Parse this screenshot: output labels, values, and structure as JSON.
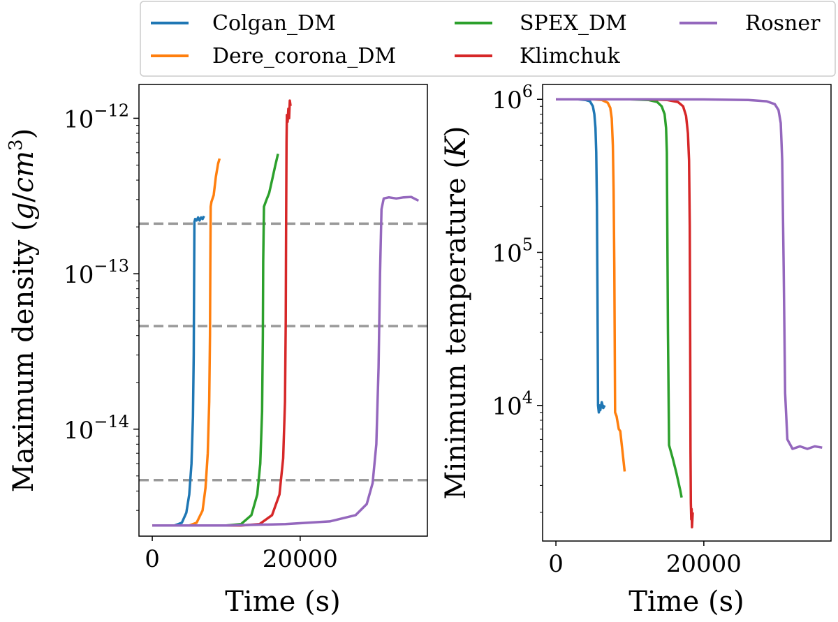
{
  "legend": {
    "location": "top",
    "entries": [
      {
        "name": "Colgan_DM",
        "color": "#1f77b4"
      },
      {
        "name": "SPEX_DM",
        "color": "#2ca02c"
      },
      {
        "name": "Rosner",
        "color": "#9467bd"
      },
      {
        "name": "Dere_corona_DM",
        "color": "#ff7f0e"
      },
      {
        "name": "Klimchuk",
        "color": "#d62728"
      }
    ]
  },
  "chart_data": [
    {
      "type": "line",
      "xlabel": "Time (s)",
      "ylabel": "Maximum density (g/cm³)",
      "yscale": "log",
      "xlim": [
        -1800,
        37200
      ],
      "ylim": [
        2.05e-15,
        1.65e-12
      ],
      "xticks": [
        {
          "value": 0,
          "label": "0"
        },
        {
          "value": 20000,
          "label": "20000"
        }
      ],
      "yticks": [
        {
          "value": 1e-12,
          "label": "10",
          "exp": "−12"
        },
        {
          "value": 1e-13,
          "label": "10",
          "exp": "−13"
        },
        {
          "value": 1e-14,
          "label": "10",
          "exp": "−14"
        }
      ],
      "hlines": [
        2.1e-13,
        4.6e-14,
        4.7e-15
      ],
      "series": [
        {
          "name": "Colgan_DM",
          "color": "#1f77b4",
          "x": [
            0,
            3000,
            4000,
            4600,
            5000,
            5300,
            5500,
            5600,
            5650,
            5700,
            5800,
            6000,
            6200,
            6400,
            6600,
            6800,
            7000
          ],
          "y": [
            2.4e-15,
            2.4e-15,
            2.5e-15,
            2.9e-15,
            3.8e-15,
            6e-15,
            1.2e-14,
            3e-14,
            8e-14,
            2.15e-13,
            2.25e-13,
            2.2e-13,
            2.3e-13,
            2.2e-13,
            2.3e-13,
            2.25e-13,
            2.35e-13
          ]
        },
        {
          "name": "Dere_corona_DM",
          "color": "#ff7f0e",
          "x": [
            0,
            5000,
            6000,
            6800,
            7200,
            7500,
            7700,
            7800,
            7850,
            7900,
            8000,
            8300,
            8600,
            8900,
            9100
          ],
          "y": [
            2.4e-15,
            2.4e-15,
            2.5e-15,
            3e-15,
            4.2e-15,
            7e-15,
            1.5e-14,
            4e-14,
            1.2e-13,
            2.7e-13,
            2.9e-13,
            3.2e-13,
            4.2e-13,
            5.1e-13,
            5.5e-13
          ]
        },
        {
          "name": "SPEX_DM",
          "color": "#2ca02c",
          "x": [
            0,
            10000,
            12000,
            13400,
            14200,
            14600,
            14850,
            14950,
            15000,
            15100,
            15400,
            15800,
            16200,
            16600,
            17000
          ],
          "y": [
            2.4e-15,
            2.4e-15,
            2.45e-15,
            2.8e-15,
            3.8e-15,
            6e-15,
            1.3e-14,
            4e-14,
            1.2e-13,
            2.7e-13,
            2.95e-13,
            3.3e-13,
            4e-13,
            4.9e-13,
            5.9e-13
          ]
        },
        {
          "name": "Klimchuk",
          "color": "#d62728",
          "x": [
            0,
            12000,
            14500,
            16200,
            17200,
            17700,
            17950,
            18050,
            18100,
            18150,
            18200,
            18300,
            18400,
            18500,
            18600,
            18700
          ],
          "y": [
            2.4e-15,
            2.4e-15,
            2.45e-15,
            2.8e-15,
            3.8e-15,
            6.5e-15,
            1.5e-14,
            5e-14,
            2e-13,
            7e-13,
            1.05e-12,
            9.5e-13,
            1.15e-12,
            1e-12,
            1.3e-12,
            1.2e-12
          ]
        },
        {
          "name": "Rosner",
          "color": "#9467bd",
          "x": [
            0,
            10000,
            18000,
            24000,
            27500,
            29000,
            29800,
            30300,
            30600,
            30800,
            31000,
            31300,
            32000,
            33000,
            34000,
            35000,
            36000
          ],
          "y": [
            2.4e-15,
            2.4e-15,
            2.45e-15,
            2.55e-15,
            2.8e-15,
            3.3e-15,
            4.5e-15,
            8e-15,
            2.5e-14,
            1e-13,
            2.6e-13,
            3.05e-13,
            3.1e-13,
            3.05e-13,
            3.1e-13,
            3.12e-13,
            2.95e-13
          ]
        }
      ]
    },
    {
      "type": "line",
      "xlabel": "Time (s)",
      "ylabel": "Minimum temperature (K)",
      "yscale": "log",
      "xlim": [
        -1800,
        37200
      ],
      "ylim": [
        1300.0,
        1250000.0
      ],
      "xticks": [
        {
          "value": 0,
          "label": "0"
        },
        {
          "value": 20000,
          "label": "20000"
        }
      ],
      "yticks": [
        {
          "value": 1000000,
          "label": "10",
          "exp": "6"
        },
        {
          "value": 100000,
          "label": "10",
          "exp": "5"
        },
        {
          "value": 10000,
          "label": "10",
          "exp": "4"
        }
      ],
      "series": [
        {
          "name": "Colgan_DM",
          "color": "#1f77b4",
          "x": [
            0,
            3000,
            4000,
            4600,
            5000,
            5200,
            5350,
            5450,
            5550,
            5620,
            5700,
            5800,
            5900,
            6000,
            6200,
            6400,
            6600
          ],
          "y": [
            1000000.0,
            1000000.0,
            990000.0,
            970000.0,
            900000.0,
            800000.0,
            650000.0,
            450000.0,
            200000.0,
            50000.0,
            10000.0,
            9000.0,
            10000.0,
            9300.0,
            10500.0,
            9600.0,
            10000.0
          ]
        },
        {
          "name": "Dere_corona_DM",
          "color": "#ff7f0e",
          "x": [
            0,
            5000,
            6200,
            7000,
            7350,
            7550,
            7700,
            7800,
            7900,
            8000,
            8200,
            8500,
            8700,
            9000,
            9300
          ],
          "y": [
            1000000.0,
            1000000.0,
            990000.0,
            950000.0,
            880000.0,
            750000.0,
            500000.0,
            250000.0,
            80000.0,
            9000.0,
            8500.0,
            7000.0,
            6800.0,
            5000.0,
            3700.0
          ]
        },
        {
          "name": "SPEX_DM",
          "color": "#2ca02c",
          "x": [
            0,
            10000,
            12500,
            13700,
            14300,
            14700,
            14900,
            15000,
            15050,
            15150,
            15300,
            15800,
            16300,
            16800,
            17000
          ],
          "y": [
            1000000.0,
            1000000.0,
            990000.0,
            960000.0,
            900000.0,
            800000.0,
            650000.0,
            450000.0,
            200000.0,
            30000.0,
            5500.0,
            4500.0,
            3600.0,
            2800.0,
            2500.0
          ]
        },
        {
          "name": "Klimchuk",
          "color": "#d62728",
          "x": [
            0,
            12000,
            15000,
            16500,
            17200,
            17600,
            17850,
            18000,
            18100,
            18150,
            18200,
            18250,
            18300,
            18350,
            18400,
            18500
          ],
          "y": [
            1000000.0,
            1000000.0,
            990000.0,
            960000.0,
            900000.0,
            780000.0,
            600000.0,
            400000.0,
            150000.0,
            30000.0,
            5000.0,
            2300.0,
            1800.0,
            2100.0,
            1600.0,
            2000.0
          ]
        },
        {
          "name": "Rosner",
          "color": "#9467bd",
          "x": [
            0,
            10000,
            20000,
            26000,
            28500,
            29600,
            30100,
            30400,
            30600,
            30800,
            31000,
            31300,
            32000,
            33000,
            34000,
            35000,
            36000
          ],
          "y": [
            1000000.0,
            1000000.0,
            998000.0,
            990000.0,
            970000.0,
            930000.0,
            850000.0,
            700000.0,
            400000.0,
            80000.0,
            12000.0,
            6000.0,
            5200.0,
            5400.0,
            5200.0,
            5400.0,
            5300.0
          ]
        }
      ]
    }
  ]
}
